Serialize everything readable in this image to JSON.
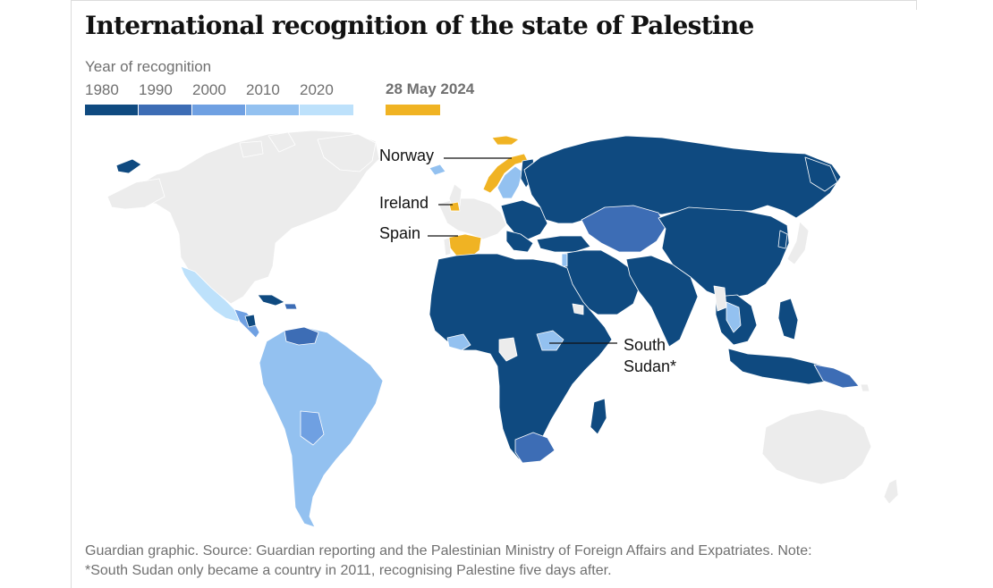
{
  "title": "International recognition of the state of Palestine",
  "legend": {
    "title": "Year of recognition",
    "decades": [
      {
        "label": "1980",
        "color": "#0f4a80"
      },
      {
        "label": "1990",
        "color": "#3d6db5"
      },
      {
        "label": "2000",
        "color": "#6fa0e2"
      },
      {
        "label": "2010",
        "color": "#93c1f0"
      },
      {
        "label": "2020",
        "color": "#bde1fb"
      }
    ],
    "special": {
      "label": "28 May 2024",
      "color": "#f0b323"
    }
  },
  "colors": {
    "unrecognised": "#ececec",
    "border": "#ffffff"
  },
  "callouts": {
    "norway": "Norway",
    "ireland": "Ireland",
    "spain": "Spain",
    "south_sudan_line1": "South",
    "south_sudan_line2": "Sudan*"
  },
  "footnote": {
    "line1": "Guardian graphic. Source: Guardian reporting and the Palestinian Ministry of Foreign Affairs and Expatriates. Note:",
    "line2": "*South Sudan only became a country in 2011, recognising Palestine five days after."
  }
}
